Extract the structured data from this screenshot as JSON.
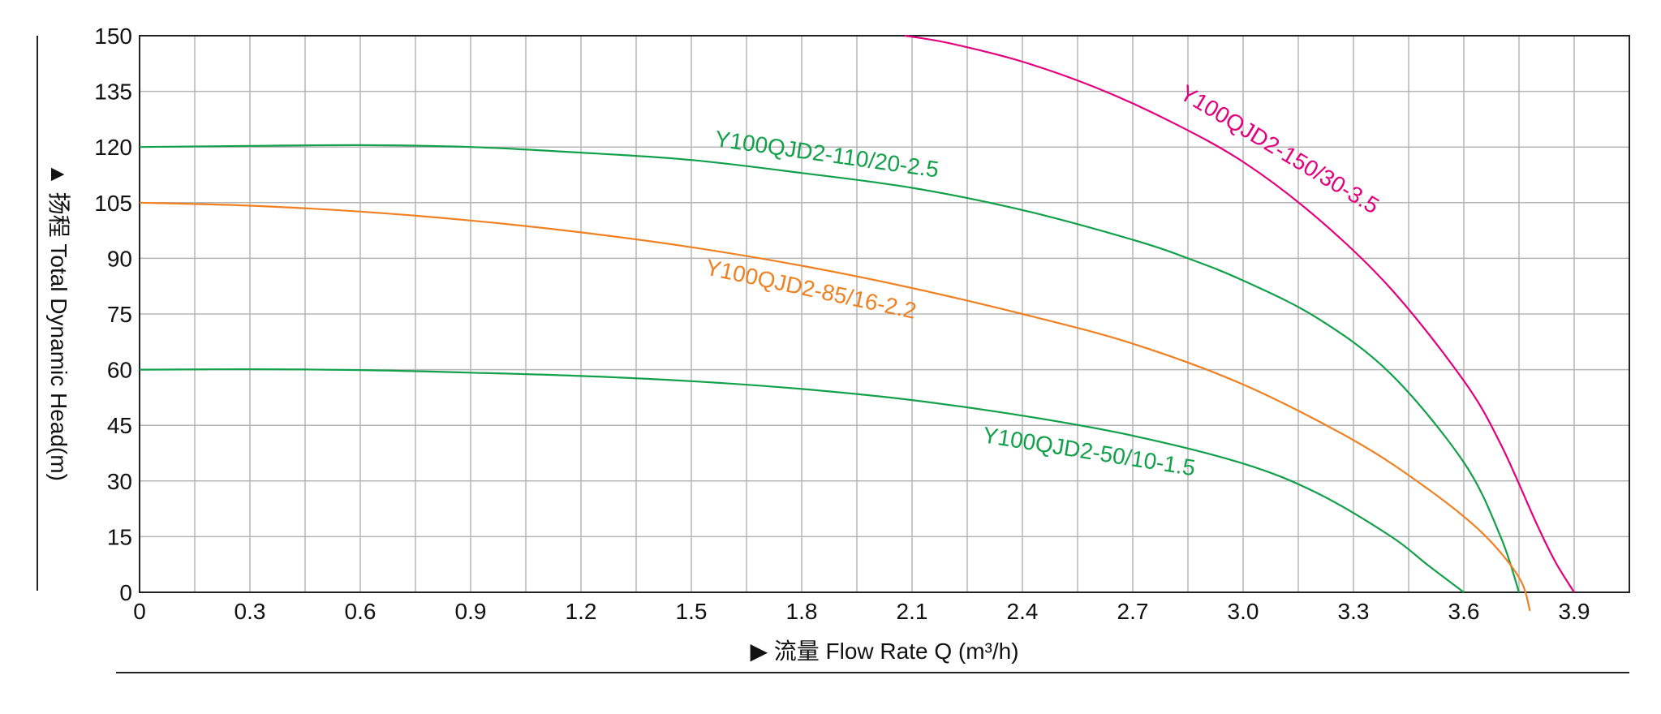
{
  "chart_data": {
    "type": "line",
    "xlabel": "▶ 流量 Flow Rate Q (m³/h)",
    "ylabel": "▲ 扬程 Total Dynamic Head(m)",
    "xlim": [
      0,
      4.05
    ],
    "ylim": [
      0,
      150
    ],
    "xticks": [
      "0",
      "0.3",
      "0.6",
      "0.9",
      "1.2",
      "1.5",
      "1.8",
      "2.1",
      "2.4",
      "2.7",
      "3.0",
      "3.3",
      "3.6",
      "3.9"
    ],
    "yticks": [
      "0",
      "15",
      "30",
      "45",
      "60",
      "75",
      "90",
      "105",
      "120",
      "135",
      "150"
    ],
    "grid": true,
    "series": [
      {
        "name": "Y100QJD2-150/30-3.5",
        "color": "#e3007e",
        "x": [
          2.08,
          2.2,
          2.4,
          2.6,
          2.8,
          3.0,
          3.2,
          3.4,
          3.6,
          3.7,
          3.8,
          3.85,
          3.9
        ],
        "y": [
          150,
          148,
          143,
          136,
          127,
          116,
          101,
          82,
          57,
          40,
          18,
          8,
          0
        ]
      },
      {
        "name": "Y100QJD2-110/20-2.5",
        "color": "#13a04a",
        "x": [
          0,
          0.3,
          0.6,
          0.9,
          1.2,
          1.5,
          1.8,
          2.1,
          2.4,
          2.7,
          2.85,
          3.0,
          3.2,
          3.4,
          3.6,
          3.7,
          3.75
        ],
        "y": [
          120,
          120.3,
          120.5,
          120,
          118.5,
          116.5,
          113,
          109,
          103,
          95,
          90,
          84,
          74,
          59,
          35,
          15,
          0
        ]
      },
      {
        "name": "Y100QJD2-85/16-2.2",
        "color": "#f08123",
        "x": [
          0,
          0.3,
          0.6,
          0.9,
          1.2,
          1.5,
          1.8,
          2.1,
          2.4,
          2.7,
          3.0,
          3.3,
          3.5,
          3.65,
          3.75,
          3.78
        ],
        "y": [
          105,
          104.2,
          102.6,
          100.2,
          97,
          93,
          88,
          82,
          75,
          67,
          56,
          41,
          28,
          16,
          4,
          -5
        ]
      },
      {
        "name": "Y100QJD2-50/10-1.5",
        "color": "#13a04a",
        "x": [
          0,
          0.3,
          0.6,
          0.9,
          1.2,
          1.5,
          1.8,
          2.1,
          2.4,
          2.7,
          3.0,
          3.2,
          3.4,
          3.5,
          3.6
        ],
        "y": [
          60,
          60.1,
          59.9,
          59.2,
          58.3,
          56.9,
          54.8,
          51.8,
          47.6,
          42.2,
          34.7,
          26.8,
          15.2,
          7.5,
          0
        ]
      }
    ]
  }
}
